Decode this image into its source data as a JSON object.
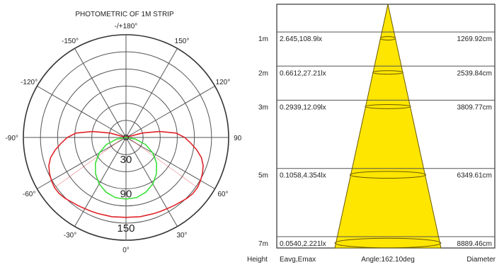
{
  "chart_data": [
    {
      "type": "polar",
      "title": "PHOTOMETRIC OF 1M  STRIP",
      "angle_labels": [
        {
          "deg": 0,
          "text": "0°"
        },
        {
          "deg": 30,
          "text": "30°"
        },
        {
          "deg": 60,
          "text": "60°"
        },
        {
          "deg": 90,
          "text": "90"
        },
        {
          "deg": 120,
          "text": "120°"
        },
        {
          "deg": 150,
          "text": "150°"
        },
        {
          "deg": 180,
          "text": "-/+180°"
        },
        {
          "deg": -150,
          "text": "-150°"
        },
        {
          "deg": -120,
          "text": "-120°"
        },
        {
          "deg": -90,
          "text": "-90°"
        },
        {
          "deg": -60,
          "text": "-60°"
        },
        {
          "deg": -30,
          "text": "-30°"
        }
      ],
      "radial_ticks": [
        {
          "value": 30,
          "text": "30"
        },
        {
          "value": 90,
          "text": "90"
        },
        {
          "value": 150,
          "text": "150"
        }
      ],
      "r_max": 180,
      "series": [
        {
          "color": "#e0242b",
          "points": [
            [
              -115,
              2
            ],
            [
              -105,
              30
            ],
            [
              -100,
              60
            ],
            [
              -95,
              88
            ],
            [
              -90,
              103
            ],
            [
              -85,
              114
            ],
            [
              -80,
              126
            ],
            [
              -75,
              137
            ],
            [
              -70,
              144
            ],
            [
              -65,
              148
            ],
            [
              -60,
              151
            ],
            [
              -55,
              153
            ],
            [
              -50,
              153
            ],
            [
              -45,
              151
            ],
            [
              -40,
              148
            ],
            [
              -35,
              146
            ],
            [
              -30,
              144
            ],
            [
              -25,
              143
            ],
            [
              -20,
              142
            ],
            [
              -15,
              141
            ],
            [
              -10,
              141
            ],
            [
              -5,
              140
            ],
            [
              0,
              140
            ],
            [
              5,
              140
            ],
            [
              10,
              141
            ],
            [
              15,
              141
            ],
            [
              20,
              142
            ],
            [
              25,
              143
            ],
            [
              30,
              144
            ],
            [
              35,
              146
            ],
            [
              40,
              148
            ],
            [
              45,
              151
            ],
            [
              50,
              153
            ],
            [
              55,
              153
            ],
            [
              60,
              151
            ],
            [
              65,
              148
            ],
            [
              70,
              144
            ],
            [
              75,
              137
            ],
            [
              80,
              126
            ],
            [
              85,
              114
            ],
            [
              90,
              103
            ],
            [
              95,
              88
            ],
            [
              100,
              60
            ],
            [
              105,
              30
            ],
            [
              115,
              2
            ]
          ]
        },
        {
          "color": "#3ee03a",
          "points": [
            [
              -90,
              0
            ],
            [
              -80,
              17
            ],
            [
              -70,
              37
            ],
            [
              -60,
              54
            ],
            [
              -50,
              70
            ],
            [
              -40,
              83
            ],
            [
              -30,
              94
            ],
            [
              -20,
              102
            ],
            [
              -10,
              107
            ],
            [
              0,
              108
            ],
            [
              10,
              107
            ],
            [
              20,
              102
            ],
            [
              30,
              94
            ],
            [
              40,
              83
            ],
            [
              50,
              70
            ],
            [
              60,
              54
            ],
            [
              70,
              37
            ],
            [
              80,
              17
            ],
            [
              90,
              0
            ]
          ]
        }
      ]
    },
    {
      "type": "table",
      "beam_angle_deg": 162.1,
      "headers": {
        "height": "Height",
        "eavg": "Eavg,Emax",
        "angle": "Angle:162.10deg",
        "diameter": "Diameter"
      },
      "rows": [
        {
          "height_m": 1,
          "height": "1m",
          "illum": "2.645,108.9lx",
          "diameter": "1269.92cm"
        },
        {
          "height_m": 2,
          "height": "2m",
          "illum": "0.6612,27.21lx",
          "diameter": "2539.84cm"
        },
        {
          "height_m": 3,
          "height": "3m",
          "illum": "0.2939,12.09lx",
          "diameter": "3809.77cm"
        },
        {
          "height_m": 5,
          "height": "5m",
          "illum": "0.1058,4.354lx",
          "diameter": "6349.61cm"
        },
        {
          "height_m": 7,
          "height": "7m",
          "illum": "0.0540,2.221lx",
          "diameter": "8889.46cm"
        }
      ],
      "colors": {
        "cone_fill": "#ffe600",
        "cone_stroke": "#6b5a00"
      }
    }
  ]
}
